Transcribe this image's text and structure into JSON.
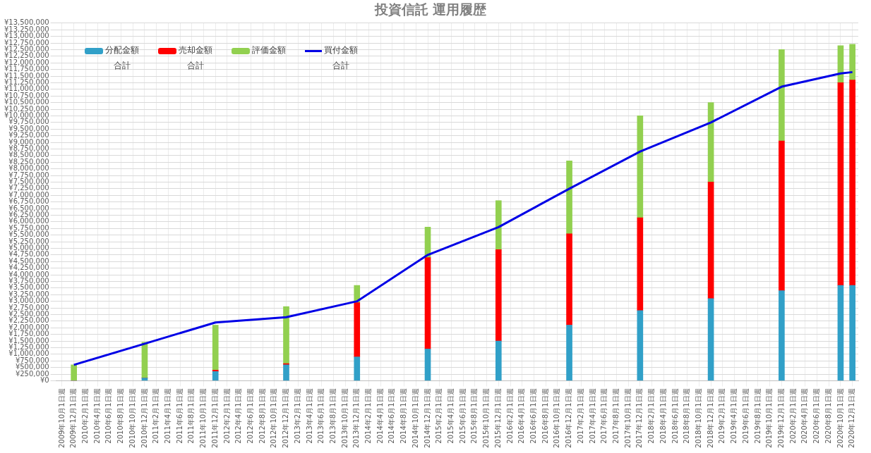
{
  "chart_data": {
    "type": "bar",
    "title": "投資信託 運用履歴",
    "stacked": true,
    "grid": true,
    "legend": "top left",
    "marker": "none",
    "line_style": "solid",
    "categories": [
      "2009年10月1日週",
      "2009年12月1日週",
      "2010年2月1日週",
      "2010年4月1日週",
      "2010年6月1日週",
      "2010年8月1日週",
      "2010年10月1日週",
      "2010年12月1日週",
      "2011年2月1日週",
      "2011年4月1日週",
      "2011年6月1日週",
      "2011年8月1日週",
      "2011年10月1日週",
      "2011年12月1日週",
      "2012年2月1日週",
      "2012年4月1日週",
      "2012年6月1日週",
      "2012年8月1日週",
      "2012年10月1日週",
      "2012年12月1日週",
      "2013年2月1日週",
      "2013年4月1日週",
      "2013年6月1日週",
      "2013年8月1日週",
      "2013年10月1日週",
      "2013年12月1日週",
      "2014年2月1日週",
      "2014年4月1日週",
      "2014年6月1日週",
      "2014年8月1日週",
      "2014年10月1日週",
      "2014年12月1日週",
      "2015年2月1日週",
      "2015年4月1日週",
      "2015年6月1日週",
      "2015年8月1日週",
      "2015年10月1日週",
      "2015年12月1日週",
      "2016年2月1日週",
      "2016年4月1日週",
      "2016年6月1日週",
      "2016年8月1日週",
      "2016年10月1日週",
      "2016年12月1日週",
      "2017年2月1日週",
      "2017年4月1日週",
      "2017年6月1日週",
      "2017年8月1日週",
      "2017年10月1日週",
      "2017年12月1日週",
      "2018年2月1日週",
      "2018年4月1日週",
      "2018年6月1日週",
      "2018年8月1日週",
      "2018年10月1日週",
      "2018年12月1日週",
      "2019年2月1日週",
      "2019年4月1日週",
      "2019年6月1日週",
      "2019年8月1日週",
      "2019年10月1日週",
      "2019年12月1日週",
      "2020年2月1日週",
      "2020年4月1日週",
      "2020年6月1日週",
      "2020年8月1日週",
      "2020年10月1日週",
      "2020年12月1日週"
    ],
    "series": [
      {
        "name": "分配金額合計",
        "color": "#31a0c8",
        "values": [
          null,
          0,
          null,
          null,
          null,
          null,
          null,
          100000,
          null,
          null,
          null,
          null,
          null,
          350000,
          null,
          null,
          null,
          null,
          null,
          600000,
          null,
          null,
          null,
          null,
          null,
          900000,
          null,
          null,
          null,
          null,
          null,
          1200000,
          null,
          null,
          null,
          null,
          null,
          1500000,
          null,
          null,
          null,
          null,
          null,
          2100000,
          null,
          null,
          null,
          null,
          null,
          2650000,
          null,
          null,
          null,
          null,
          null,
          3100000,
          null,
          null,
          null,
          null,
          null,
          3400000,
          null,
          null,
          null,
          null,
          3600000,
          3600000
        ]
      },
      {
        "name": "売却金額合計",
        "color": "#ff0000",
        "values": [
          null,
          0,
          null,
          null,
          null,
          null,
          null,
          0,
          null,
          null,
          null,
          null,
          null,
          50000,
          null,
          null,
          null,
          null,
          null,
          50000,
          null,
          null,
          null,
          null,
          null,
          2050000,
          null,
          null,
          null,
          null,
          null,
          3450000,
          null,
          null,
          null,
          null,
          null,
          3450000,
          null,
          null,
          null,
          null,
          null,
          3450000,
          null,
          null,
          null,
          null,
          null,
          3500000,
          null,
          null,
          null,
          null,
          null,
          4400000,
          null,
          null,
          null,
          null,
          null,
          5650000,
          null,
          null,
          null,
          null,
          7650000,
          7750000
        ]
      },
      {
        "name": "評価金額",
        "color": "#92d050",
        "values": [
          null,
          600000,
          null,
          null,
          null,
          null,
          null,
          1350000,
          null,
          null,
          null,
          null,
          null,
          1700000,
          null,
          null,
          null,
          null,
          null,
          2150000,
          null,
          null,
          null,
          null,
          null,
          650000,
          null,
          null,
          null,
          null,
          null,
          1150000,
          null,
          null,
          null,
          null,
          null,
          1850000,
          null,
          null,
          null,
          null,
          null,
          2750000,
          null,
          null,
          null,
          null,
          null,
          3850000,
          null,
          null,
          null,
          null,
          null,
          3000000,
          null,
          null,
          null,
          null,
          null,
          3450000,
          null,
          null,
          null,
          null,
          1400000,
          1350000
        ]
      },
      {
        "name": "買付金額合計",
        "type": "line",
        "color": "#0000e6",
        "values": [
          null,
          600000,
          null,
          null,
          null,
          null,
          null,
          1400000,
          null,
          null,
          null,
          null,
          null,
          2200000,
          null,
          null,
          null,
          null,
          null,
          2400000,
          null,
          null,
          null,
          null,
          null,
          3000000,
          null,
          null,
          null,
          null,
          null,
          4750000,
          null,
          null,
          null,
          null,
          null,
          5800000,
          null,
          null,
          null,
          null,
          null,
          7250000,
          null,
          null,
          null,
          null,
          null,
          8650000,
          null,
          null,
          null,
          null,
          null,
          9750000,
          null,
          null,
          null,
          null,
          null,
          11100000,
          null,
          null,
          null,
          null,
          11600000,
          11650000
        ]
      }
    ],
    "ylim": [
      0,
      13500000
    ],
    "yticks": [
      {
        "value": 0,
        "label": "¥0"
      },
      {
        "value": 250000,
        "label": "¥250,000"
      },
      {
        "value": 500000,
        "label": "¥500,000"
      },
      {
        "value": 750000,
        "label": "¥750,000"
      },
      {
        "value": 1000000,
        "label": "¥1,000,000"
      },
      {
        "value": 1250000,
        "label": "¥1,250,000"
      },
      {
        "value": 1500000,
        "label": "¥1,500,000"
      },
      {
        "value": 1750000,
        "label": "¥1,750,000"
      },
      {
        "value": 2000000,
        "label": "¥2,000,000"
      },
      {
        "value": 2250000,
        "label": "¥2,250,000"
      },
      {
        "value": 2500000,
        "label": "¥2,500,000"
      },
      {
        "value": 2750000,
        "label": "¥2,750,000"
      },
      {
        "value": 3000000,
        "label": "¥3,000,000"
      },
      {
        "value": 3250000,
        "label": "¥3,250,000"
      },
      {
        "value": 3500000,
        "label": "¥3,500,000"
      },
      {
        "value": 3750000,
        "label": "¥3,750,000"
      },
      {
        "value": 4000000,
        "label": "¥4,000,000"
      },
      {
        "value": 4250000,
        "label": "¥4,250,000"
      },
      {
        "value": 4500000,
        "label": "¥4,500,000"
      },
      {
        "value": 4750000,
        "label": "¥4,750,000"
      },
      {
        "value": 5000000,
        "label": "¥5,000,000"
      },
      {
        "value": 5250000,
        "label": "¥5,250,000"
      },
      {
        "value": 5500000,
        "label": "¥5,500,000"
      },
      {
        "value": 5750000,
        "label": "¥5,750,000"
      },
      {
        "value": 6000000,
        "label": "¥6,000,000"
      },
      {
        "value": 6250000,
        "label": "¥6,250,000"
      },
      {
        "value": 6500000,
        "label": "¥6,500,000"
      },
      {
        "value": 6750000,
        "label": "¥6,750,000"
      },
      {
        "value": 7000000,
        "label": "¥7,000,000"
      },
      {
        "value": 7250000,
        "label": "¥7,250,000"
      },
      {
        "value": 7500000,
        "label": "¥7,500,000"
      },
      {
        "value": 7750000,
        "label": "¥7,750,000"
      },
      {
        "value": 8000000,
        "label": "¥8,000,000"
      },
      {
        "value": 8250000,
        "label": "¥8,250,000"
      },
      {
        "value": 8500000,
        "label": "¥8,500,000"
      },
      {
        "value": 8750000,
        "label": "¥8,750,000"
      },
      {
        "value": 9000000,
        "label": "¥9,000,000"
      },
      {
        "value": 9250000,
        "label": "¥9,250,000"
      },
      {
        "value": 9500000,
        "label": "¥9,500,000"
      },
      {
        "value": 9750000,
        "label": "¥9,750,000"
      },
      {
        "value": 10000000,
        "label": "¥10,000,000"
      },
      {
        "value": 10250000,
        "label": "¥10,250,000"
      },
      {
        "value": 10500000,
        "label": "¥10,500,000"
      },
      {
        "value": 10750000,
        "label": "¥10,750,000"
      },
      {
        "value": 11000000,
        "label": "¥11,000,000"
      },
      {
        "value": 11250000,
        "label": "¥11,250,000"
      },
      {
        "value": 11500000,
        "label": "¥11,500,000"
      },
      {
        "value": 11750000,
        "label": "¥11,750,000"
      },
      {
        "value": 12000000,
        "label": "¥12,000,000"
      },
      {
        "value": 12250000,
        "label": "¥12,250,000"
      },
      {
        "value": 12500000,
        "label": "¥12,500,000"
      },
      {
        "value": 12750000,
        "label": "¥12,750,000"
      },
      {
        "value": 13000000,
        "label": "¥13,000,000"
      },
      {
        "value": 13250000,
        "label": "¥13,250,000"
      },
      {
        "value": 13500000,
        "label": "¥13,500,000"
      }
    ]
  }
}
